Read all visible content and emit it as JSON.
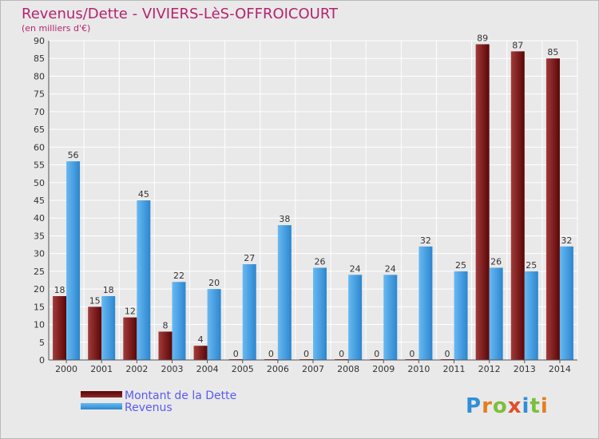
{
  "title": "Revenus/Dette - VIVIERS-LèS-OFFROICOURT",
  "subtitle": "(en milliers d'€)",
  "brand": "Proxiti",
  "colors": {
    "title": "#b3246e",
    "debt_light": "#a33a3a",
    "debt_dark": "#5a0606",
    "revenue_light": "#67b9f2",
    "revenue_dark": "#2c86cf",
    "legend_text": "#5a5af0"
  },
  "chart_data": {
    "type": "bar",
    "title": "Revenus/Dette - VIVIERS-LèS-OFFROICOURT",
    "ylabel": "(en milliers d'€)",
    "xlabel": "",
    "ylim": [
      0,
      90
    ],
    "ytick_step": 5,
    "grid": true,
    "legend_position": "bottom-left",
    "categories": [
      "2000",
      "2001",
      "2002",
      "2003",
      "2004",
      "2005",
      "2006",
      "2007",
      "2008",
      "2009",
      "2010",
      "2011",
      "2012",
      "2013",
      "2014"
    ],
    "series": [
      {
        "name": "Montant de la Dette",
        "values": [
          18,
          15,
          12,
          8,
          4,
          0,
          0,
          0,
          0,
          0,
          0,
          0,
          89,
          87,
          85
        ]
      },
      {
        "name": "Revenus",
        "values": [
          56,
          18,
          45,
          22,
          20,
          27,
          38,
          26,
          24,
          24,
          32,
          25,
          26,
          25,
          32
        ]
      }
    ]
  }
}
